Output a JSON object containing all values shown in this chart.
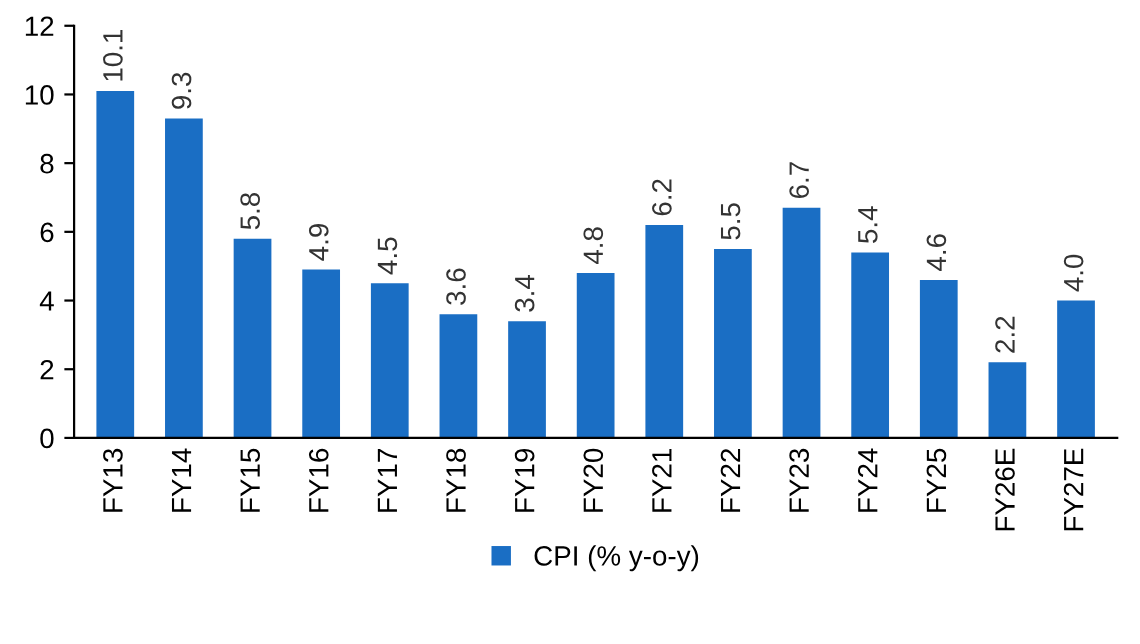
{
  "chart_data": {
    "type": "bar",
    "categories": [
      "FY13",
      "FY14",
      "FY15",
      "FY16",
      "FY17",
      "FY18",
      "FY19",
      "FY20",
      "FY21",
      "FY22",
      "FY23",
      "FY24",
      "FY25",
      "FY26E",
      "FY27E"
    ],
    "series": [
      {
        "name": "CPI (% y-o-y)",
        "color": "#1a6ec4",
        "values": [
          10.1,
          9.3,
          5.8,
          4.9,
          4.5,
          3.6,
          3.4,
          4.8,
          6.2,
          5.5,
          6.7,
          5.4,
          4.6,
          2.2,
          4.0
        ],
        "value_labels": [
          "10.1",
          "9.3",
          "5.8",
          "4.9",
          "4.5",
          "3.6",
          "3.4",
          "4.8",
          "6.2",
          "5.5",
          "6.7",
          "5.4",
          "4.6",
          "2.2",
          "4.0"
        ]
      }
    ],
    "ylim": [
      0,
      12
    ],
    "yticks": [
      0,
      2,
      4,
      6,
      8,
      10,
      12
    ],
    "grid": false,
    "legend": "bottom"
  }
}
